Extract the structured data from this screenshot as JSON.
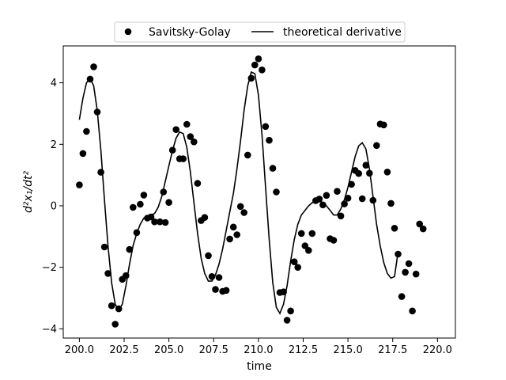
{
  "chart_data": {
    "type": "scatter",
    "title": "",
    "xlabel": "time",
    "ylabel": "d²x₁/dt²",
    "xlim": [
      199.1,
      221.0
    ],
    "ylim": [
      -4.3,
      5.2
    ],
    "xticks": [
      200.0,
      202.5,
      205.0,
      207.5,
      210.0,
      212.5,
      215.0,
      217.5,
      220.0
    ],
    "xtick_labels": [
      "200.0",
      "202.5",
      "205.0",
      "207.5",
      "210.0",
      "212.5",
      "215.0",
      "217.5",
      "220.0"
    ],
    "yticks": [
      -4,
      -2,
      0,
      2,
      4
    ],
    "ytick_labels": [
      "−4",
      "−2",
      "0",
      "2",
      "4"
    ],
    "grid": false,
    "legend": {
      "placement": "top-center",
      "columns": 2
    },
    "series": [
      {
        "name": "Savitsky-Golay",
        "kind": "scatter",
        "color": "#000000",
        "points": [
          [
            200.0,
            0.68
          ],
          [
            200.2,
            1.7
          ],
          [
            200.4,
            2.42
          ],
          [
            200.6,
            4.12
          ],
          [
            200.8,
            4.52
          ],
          [
            201.0,
            3.05
          ],
          [
            201.2,
            1.09
          ],
          [
            201.4,
            -1.34
          ],
          [
            201.6,
            -2.2
          ],
          [
            201.8,
            -3.25
          ],
          [
            202.0,
            -3.85
          ],
          [
            202.2,
            -3.35
          ],
          [
            202.4,
            -2.39
          ],
          [
            202.6,
            -2.27
          ],
          [
            202.8,
            -1.42
          ],
          [
            203.0,
            -0.05
          ],
          [
            203.2,
            -0.87
          ],
          [
            203.4,
            0.05
          ],
          [
            203.6,
            0.35
          ],
          [
            203.8,
            -0.4
          ],
          [
            204.0,
            -0.36
          ],
          [
            204.2,
            -0.52
          ],
          [
            204.5,
            -0.52
          ],
          [
            204.7,
            0.45
          ],
          [
            204.8,
            -0.54
          ],
          [
            205.0,
            0.11
          ],
          [
            205.2,
            1.81
          ],
          [
            205.4,
            2.48
          ],
          [
            205.6,
            1.53
          ],
          [
            205.8,
            1.53
          ],
          [
            206.0,
            2.65
          ],
          [
            206.2,
            2.25
          ],
          [
            206.4,
            2.08
          ],
          [
            206.6,
            0.73
          ],
          [
            206.8,
            -0.48
          ],
          [
            207.0,
            -0.38
          ],
          [
            207.2,
            -1.62
          ],
          [
            207.4,
            -2.3
          ],
          [
            207.6,
            -2.72
          ],
          [
            207.8,
            -2.33
          ],
          [
            208.0,
            -2.78
          ],
          [
            208.2,
            -2.75
          ],
          [
            208.4,
            -1.08
          ],
          [
            208.6,
            -0.69
          ],
          [
            208.8,
            -0.94
          ],
          [
            209.0,
            -0.02
          ],
          [
            209.2,
            -0.22
          ],
          [
            209.4,
            1.65
          ],
          [
            209.6,
            4.15
          ],
          [
            209.8,
            4.58
          ],
          [
            210.0,
            4.78
          ],
          [
            210.2,
            4.42
          ],
          [
            210.4,
            2.58
          ],
          [
            210.6,
            2.13
          ],
          [
            210.8,
            1.22
          ],
          [
            211.0,
            0.45
          ],
          [
            211.2,
            -2.82
          ],
          [
            211.4,
            -2.8
          ],
          [
            211.6,
            -3.72
          ],
          [
            211.8,
            -3.42
          ],
          [
            212.0,
            -1.82
          ],
          [
            212.2,
            -2.0
          ],
          [
            212.4,
            -0.9
          ],
          [
            212.6,
            -1.3
          ],
          [
            212.8,
            -1.45
          ],
          [
            213.0,
            -0.9
          ],
          [
            213.2,
            0.17
          ],
          [
            213.4,
            0.22
          ],
          [
            213.6,
            0.03
          ],
          [
            213.8,
            0.34
          ],
          [
            214.0,
            -1.07
          ],
          [
            214.2,
            -1.12
          ],
          [
            214.4,
            0.47
          ],
          [
            214.6,
            -0.33
          ],
          [
            214.8,
            0.06
          ],
          [
            215.0,
            0.25
          ],
          [
            215.2,
            0.7
          ],
          [
            215.4,
            1.15
          ],
          [
            215.6,
            1.05
          ],
          [
            215.8,
            0.23
          ],
          [
            216.0,
            1.32
          ],
          [
            216.2,
            1.06
          ],
          [
            216.4,
            0.18
          ],
          [
            216.6,
            1.96
          ],
          [
            216.8,
            2.66
          ],
          [
            217.0,
            2.63
          ],
          [
            217.2,
            1.1
          ],
          [
            217.4,
            0.08
          ],
          [
            217.6,
            -0.73
          ],
          [
            217.8,
            -1.57
          ],
          [
            218.0,
            -2.95
          ],
          [
            218.2,
            -2.16
          ],
          [
            218.4,
            -1.88
          ],
          [
            218.6,
            -3.42
          ],
          [
            218.8,
            -2.22
          ],
          [
            219.0,
            -0.59
          ],
          [
            219.2,
            -0.75
          ]
        ]
      },
      {
        "name": "theoretical derivative",
        "kind": "line",
        "color": "#000000",
        "points": [
          [
            200.0,
            2.8
          ],
          [
            200.2,
            3.5
          ],
          [
            200.4,
            4.0
          ],
          [
            200.6,
            4.15
          ],
          [
            200.8,
            3.9
          ],
          [
            201.0,
            3.1
          ],
          [
            201.2,
            1.8
          ],
          [
            201.4,
            0.2
          ],
          [
            201.6,
            -1.3
          ],
          [
            201.8,
            -2.5
          ],
          [
            202.0,
            -3.2
          ],
          [
            202.2,
            -3.4
          ],
          [
            202.4,
            -3.2
          ],
          [
            202.6,
            -2.6
          ],
          [
            202.8,
            -1.9
          ],
          [
            203.0,
            -1.3
          ],
          [
            203.2,
            -0.9
          ],
          [
            203.4,
            -0.6
          ],
          [
            203.6,
            -0.4
          ],
          [
            203.8,
            -0.35
          ],
          [
            204.0,
            -0.3
          ],
          [
            204.2,
            -0.25
          ],
          [
            204.4,
            -0.05
          ],
          [
            204.6,
            0.3
          ],
          [
            204.8,
            0.8
          ],
          [
            205.0,
            1.3
          ],
          [
            205.2,
            1.8
          ],
          [
            205.4,
            2.2
          ],
          [
            205.6,
            2.4
          ],
          [
            205.8,
            2.35
          ],
          [
            206.0,
            1.9
          ],
          [
            206.2,
            1.1
          ],
          [
            206.4,
            0.1
          ],
          [
            206.6,
            -0.9
          ],
          [
            206.8,
            -1.7
          ],
          [
            207.0,
            -2.2
          ],
          [
            207.2,
            -2.45
          ],
          [
            207.4,
            -2.45
          ],
          [
            207.6,
            -2.25
          ],
          [
            207.8,
            -1.9
          ],
          [
            208.0,
            -1.4
          ],
          [
            208.2,
            -0.8
          ],
          [
            208.4,
            -0.2
          ],
          [
            208.6,
            0.4
          ],
          [
            208.8,
            1.2
          ],
          [
            209.0,
            2.1
          ],
          [
            209.2,
            3.1
          ],
          [
            209.4,
            3.9
          ],
          [
            209.6,
            4.35
          ],
          [
            209.8,
            4.3
          ],
          [
            210.0,
            3.6
          ],
          [
            210.2,
            2.3
          ],
          [
            210.4,
            0.6
          ],
          [
            210.6,
            -1.1
          ],
          [
            210.8,
            -2.5
          ],
          [
            211.0,
            -3.3
          ],
          [
            211.2,
            -3.5
          ],
          [
            211.4,
            -3.2
          ],
          [
            211.6,
            -2.6
          ],
          [
            211.8,
            -1.8
          ],
          [
            212.0,
            -1.1
          ],
          [
            212.2,
            -0.6
          ],
          [
            212.4,
            -0.3
          ],
          [
            212.6,
            -0.15
          ],
          [
            212.8,
            0.0
          ],
          [
            213.0,
            0.1
          ],
          [
            213.2,
            0.15
          ],
          [
            213.4,
            0.15
          ],
          [
            213.6,
            0.1
          ],
          [
            213.8,
            0.0
          ],
          [
            214.0,
            -0.15
          ],
          [
            214.2,
            -0.3
          ],
          [
            214.4,
            -0.3
          ],
          [
            214.6,
            -0.1
          ],
          [
            214.8,
            0.2
          ],
          [
            215.0,
            0.6
          ],
          [
            215.2,
            1.1
          ],
          [
            215.4,
            1.6
          ],
          [
            215.6,
            1.95
          ],
          [
            215.8,
            2.05
          ],
          [
            216.0,
            1.85
          ],
          [
            216.2,
            1.2
          ],
          [
            216.4,
            0.3
          ],
          [
            216.6,
            -0.6
          ],
          [
            216.8,
            -1.3
          ],
          [
            217.0,
            -1.85
          ],
          [
            217.2,
            -2.2
          ],
          [
            217.4,
            -2.35
          ],
          [
            217.6,
            -2.3
          ],
          [
            217.8,
            -1.5
          ]
        ]
      }
    ]
  }
}
